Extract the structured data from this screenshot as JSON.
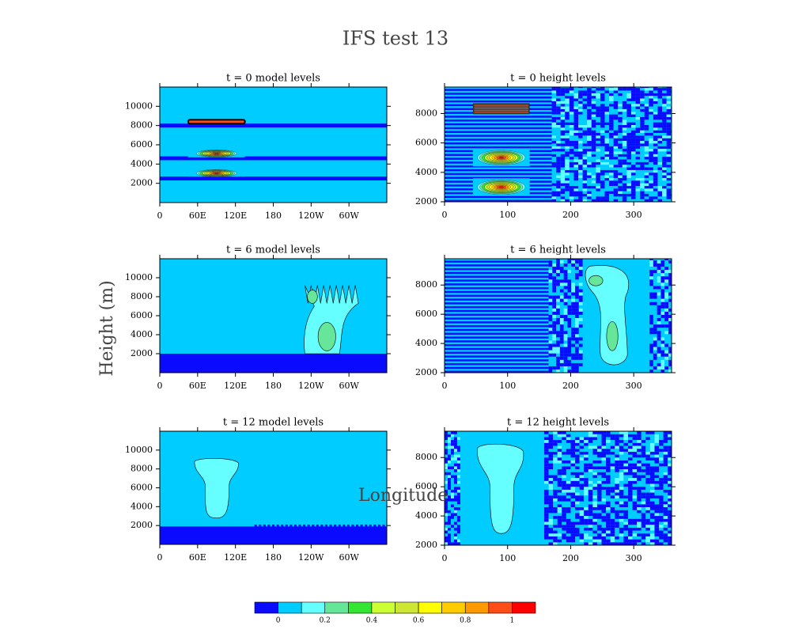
{
  "title": "IFS test 13",
  "y_label": "Height (m)",
  "x_label": "Longitude",
  "colorbar": {
    "colors": [
      "#0a0aff",
      "#00ccff",
      "#66ffff",
      "#66e699",
      "#33e633",
      "#ccff33",
      "#cce633",
      "#ffff00",
      "#ffcc00",
      "#ff9900",
      "#ff4d1a",
      "#ff0000"
    ],
    "lim": [
      -0.1,
      1.1
    ],
    "ticks": [
      0,
      0.2,
      0.4,
      0.6,
      0.8,
      1
    ]
  },
  "chart_data": [
    {
      "type": "contour",
      "title": "t = 0 model levels",
      "xlim": [
        0,
        360
      ],
      "ylim": [
        0,
        12000
      ],
      "xticks": [
        0,
        {
          "value": 60,
          "label": "60E"
        },
        {
          "value": 120,
          "label": "120E"
        },
        180,
        {
          "value": 240,
          "label": "120W"
        },
        {
          "value": 300,
          "label": "60W"
        }
      ],
      "yticks": [
        2000,
        4000,
        6000,
        8000,
        10000
      ]
    },
    {
      "type": "contour",
      "title": "t = 0 height levels",
      "xlim": [
        0,
        360
      ],
      "ylim": [
        2000,
        9800
      ],
      "xticks": [
        0,
        100,
        200,
        300
      ],
      "yticks": [
        2000,
        4000,
        6000,
        8000
      ]
    },
    {
      "type": "contour",
      "title": "t = 6 model levels",
      "xlim": [
        0,
        360
      ],
      "ylim": [
        0,
        12000
      ],
      "xticks": [
        0,
        {
          "value": 60,
          "label": "60E"
        },
        {
          "value": 120,
          "label": "120E"
        },
        180,
        {
          "value": 240,
          "label": "120W"
        },
        {
          "value": 300,
          "label": "60W"
        }
      ],
      "yticks": [
        2000,
        4000,
        6000,
        8000,
        10000
      ]
    },
    {
      "type": "contour",
      "title": "t = 6 height levels",
      "xlim": [
        0,
        360
      ],
      "ylim": [
        2000,
        9800
      ],
      "xticks": [
        0,
        100,
        200,
        300
      ],
      "yticks": [
        2000,
        4000,
        6000,
        8000
      ]
    },
    {
      "type": "contour",
      "title": "t = 12 model levels",
      "xlim": [
        0,
        360
      ],
      "ylim": [
        0,
        12000
      ],
      "xticks": [
        0,
        {
          "value": 60,
          "label": "60E"
        },
        {
          "value": 120,
          "label": "120E"
        },
        180,
        {
          "value": 240,
          "label": "120W"
        },
        {
          "value": 300,
          "label": "60W"
        }
      ],
      "yticks": [
        2000,
        4000,
        6000,
        8000,
        10000
      ]
    },
    {
      "type": "contour",
      "title": "t = 12 height levels",
      "xlim": [
        0,
        360
      ],
      "ylim": [
        2000,
        9800
      ],
      "xticks": [
        0,
        100,
        200,
        300
      ],
      "yticks": [
        2000,
        4000,
        6000,
        8000
      ]
    }
  ]
}
